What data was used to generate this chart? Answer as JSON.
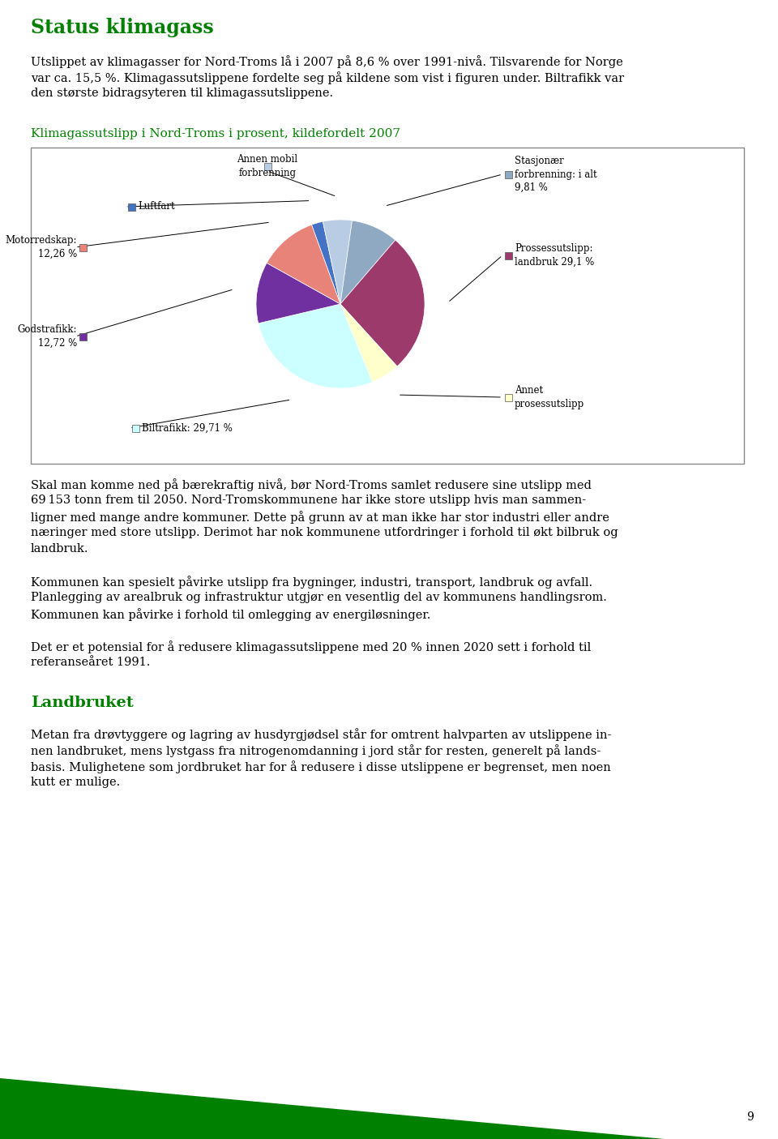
{
  "page_title": "Status klimagass",
  "page_title_color": "#008000",
  "body_text_1": "Utslippet av klimagasser for Nord-Troms lå i 2007 på 8,6 % over 1991-nivå. Tilsvarende for Norge var ca. 15,5 %. Klimagassutslippene fordelte seg på kildene som vist i figuren under. Biltrafikk var den største bidragsyteren til klimagassutslippene.",
  "chart_title": "Klimagassutslipp i Nord-Troms i prosent, kildefordelt 2007",
  "chart_title_color": "#008000",
  "slices": [
    {
      "label": "Luftfart",
      "value": 2.4,
      "color": "#4472C4"
    },
    {
      "label": "Annen mobil\nforbrenning",
      "value": 6.0,
      "color": "#B8CCE4"
    },
    {
      "label": "Stasjonær\nforbrenning: i alt\n9,81 %",
      "value": 9.81,
      "color": "#8EA9C1"
    },
    {
      "label": "Prossessutslipp:\nlandbruk 29,1 %",
      "value": 29.1,
      "color": "#9B3A6B"
    },
    {
      "label": "Annet\nprosessutslipp",
      "value": 6.0,
      "color": "#FFFFCC"
    },
    {
      "label": "Biltrafikk: 29,71 %",
      "value": 29.71,
      "color": "#CCFFFF"
    },
    {
      "label": "Godstrafikk:\n12,72 %",
      "value": 12.72,
      "color": "#7030A0"
    },
    {
      "label": "Motorredskap:\n12,26 %",
      "value": 12.26,
      "color": "#E8837A"
    }
  ],
  "body_text_2": "Skal man komme ned på bærekraftig nivå, bør Nord-Troms samlet redusere sine utslipp med 69 153 tonn frem til 2050. Nord-Tromskommunene har ikke store utslipp hvis man sammenligner med mange andre kommuner. Dette på grunn av at man ikke har stor industri eller andre næringer med store utslipp. Derimot har nok kommunene utfordringer i forhold til økt bilbruk og landbruk.",
  "body_text_3": "Kommunen kan spesielt påvirke utslipp fra bygninger, industri, transport, landbruk og avfall. Planlegging av arealbruk og infrastruktur utgjør en vesentlig del av kommunens handlingsrom. Kommunen kan påvirke i forhold til omlegging av energiløsninger.",
  "body_text_4": "Det er et potensial for å redusere klimagassutslippene med 20 % innen 2020 sett i forhold til referanseåret 1991.",
  "section_title": "Landbruket",
  "section_title_color": "#008000",
  "body_text_5": "Metan fra drøvtyggere og lagring av husdyrgjødsel står for omtrent halvparten av utslippene innen landbruket, mens lystgass fra nitrogenomdanning i jord står for resten, generelt på landsbasis. Mulighetene som jordbruket har for å redusere i disse utslippene er begrenset, men noen kutt er mulige.",
  "page_number": "9",
  "background_color": "#FFFFFF",
  "text_color": "#000000"
}
